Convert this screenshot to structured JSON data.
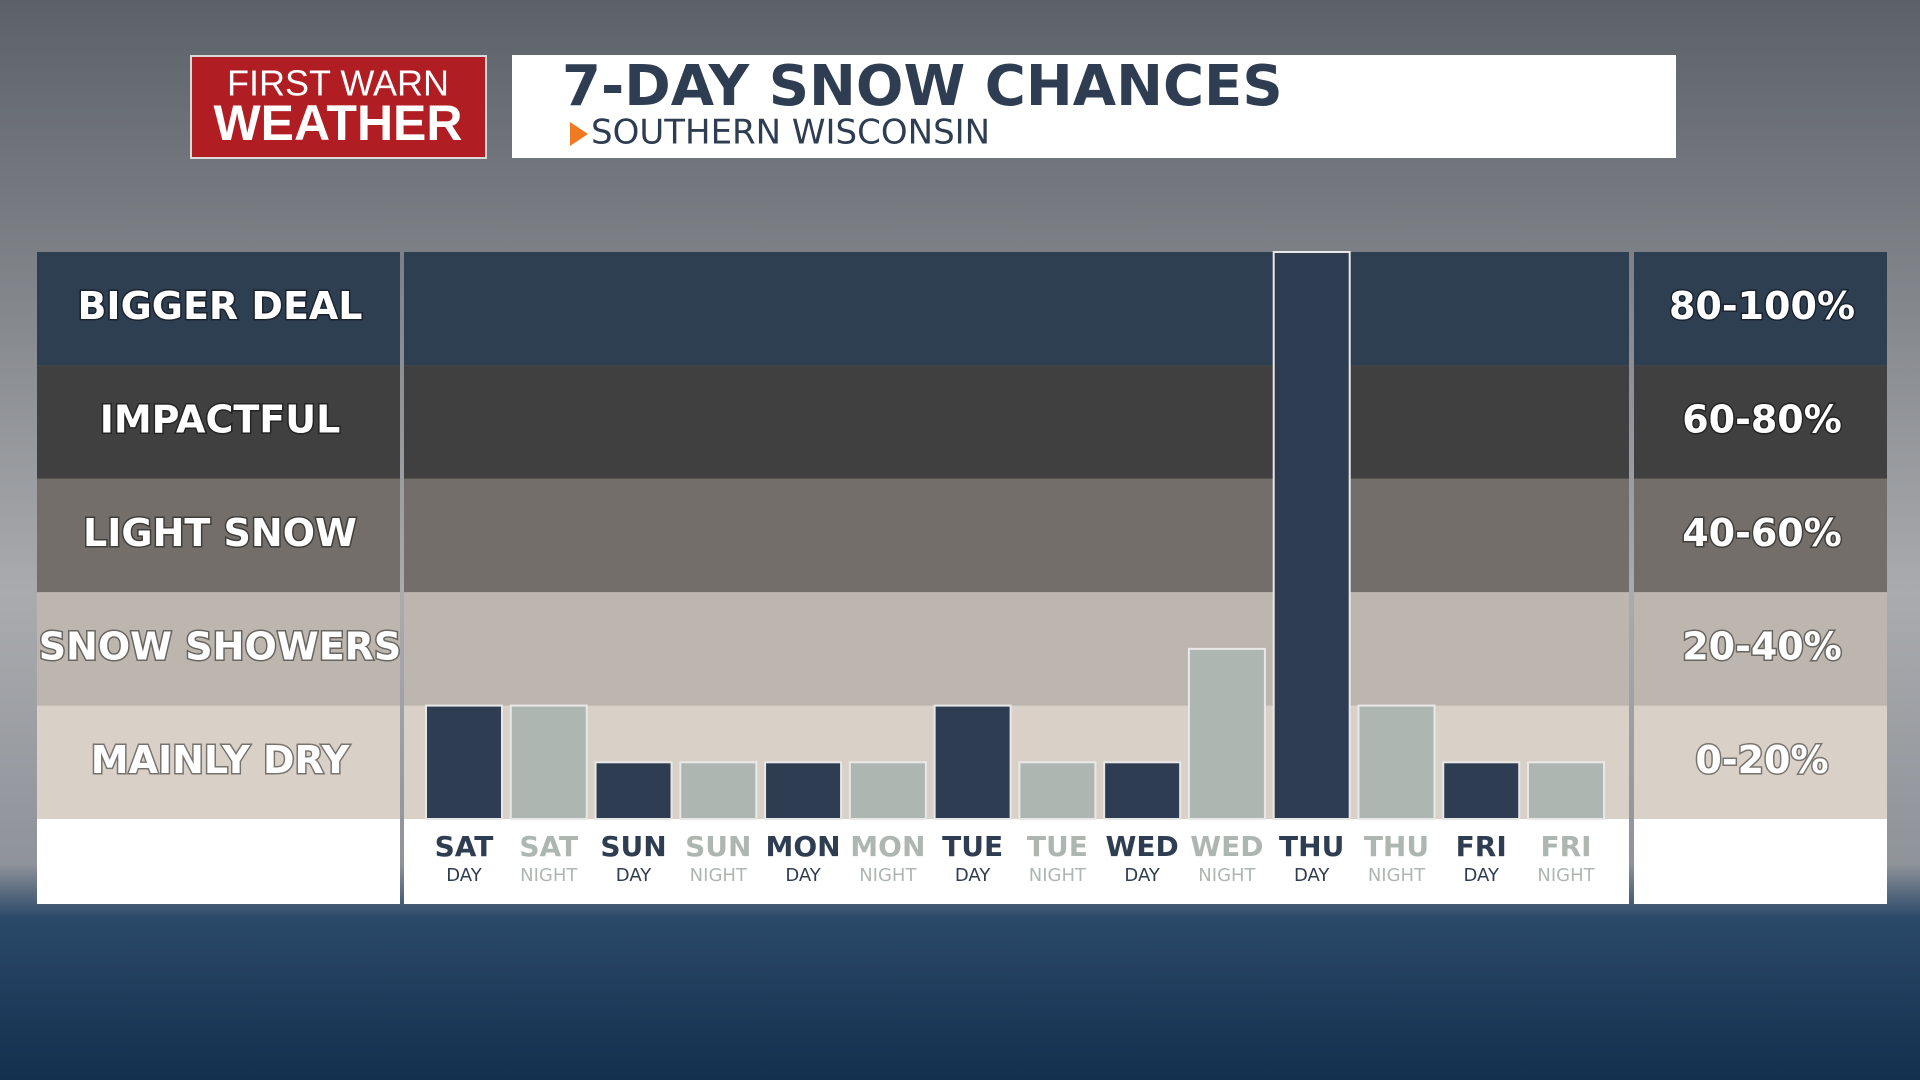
{
  "logo": {
    "line1": "FIRST WARN",
    "line2": "WEATHER"
  },
  "chart_data": {
    "type": "bar",
    "title": "7-DAY SNOW CHANCES",
    "subtitle": "SOUTHERN WISCONSIN",
    "categories": [
      "SAT",
      "SAT",
      "SUN",
      "SUN",
      "MON",
      "MON",
      "TUE",
      "TUE",
      "WED",
      "WED",
      "THU",
      "THU",
      "FRI",
      "FRI"
    ],
    "periods": [
      "DAY",
      "NIGHT",
      "DAY",
      "NIGHT",
      "DAY",
      "NIGHT",
      "DAY",
      "NIGHT",
      "DAY",
      "NIGHT",
      "DAY",
      "NIGHT",
      "DAY",
      "NIGHT"
    ],
    "values": [
      20,
      20,
      10,
      10,
      10,
      10,
      20,
      10,
      10,
      30,
      100,
      20,
      10,
      10
    ],
    "colors": [
      "#2e3d51",
      "#aeb6b1",
      "#2e3d51",
      "#aeb6b1",
      "#2e3d51",
      "#aeb6b1",
      "#2e3d51",
      "#aeb6b1",
      "#2e3d51",
      "#aeb6b1",
      "#2e3d51",
      "#aeb6b1",
      "#2e3d51",
      "#aeb6b1"
    ],
    "ylim": [
      0,
      100
    ],
    "bands": [
      {
        "name": "BIGGER DEAL",
        "label": "80-100%",
        "from": 80,
        "to": 100,
        "color": "#2f3f52"
      },
      {
        "name": "IMPACTFUL",
        "label": "60-80%",
        "from": 60,
        "to": 80,
        "color": "#404040"
      },
      {
        "name": "LIGHT SNOW",
        "label": "40-60%",
        "from": 40,
        "to": 60,
        "color": "#736e69"
      },
      {
        "name": "SNOW SHOWERS",
        "label": "20-40%",
        "from": 20,
        "to": 40,
        "color": "#bdb6ae"
      },
      {
        "name": "MAINLY DRY",
        "label": "0-20%",
        "from": 0,
        "to": 20,
        "color": "#d9d1c8"
      }
    ]
  }
}
